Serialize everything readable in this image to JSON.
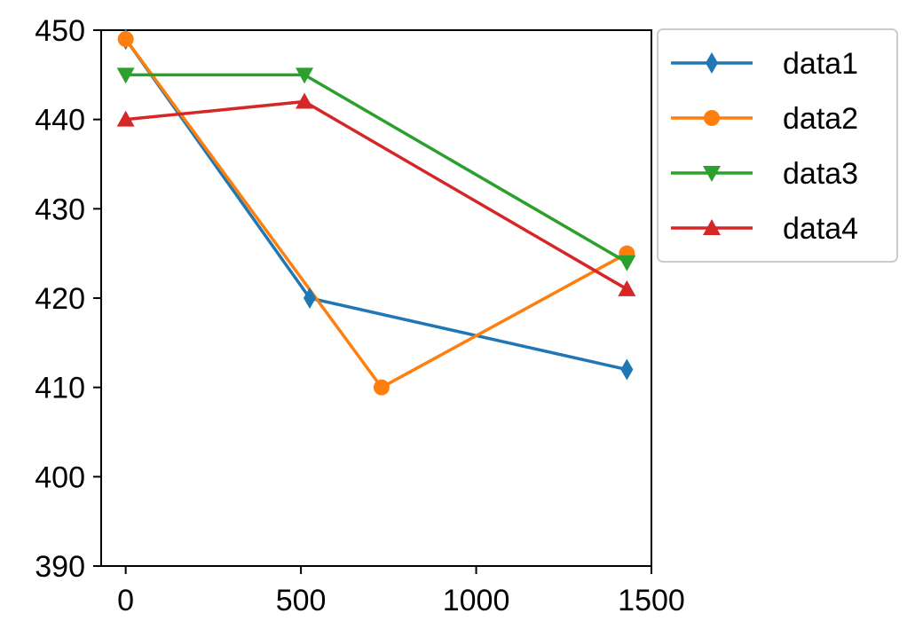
{
  "chart_data": {
    "type": "line",
    "title": "",
    "xlabel": "",
    "ylabel": "",
    "xlim": [
      -70,
      1500
    ],
    "ylim": [
      390,
      450
    ],
    "grid": false,
    "x_ticks": [
      0,
      500,
      1000,
      1500
    ],
    "y_ticks": [
      390,
      400,
      410,
      420,
      430,
      440,
      450
    ],
    "legend_position": "outside-top-right",
    "series": [
      {
        "name": "data1",
        "color": "#1f77b4",
        "marker": "thin-diamond",
        "x": [
          0,
          525,
          1430
        ],
        "y": [
          449,
          420,
          412
        ]
      },
      {
        "name": "data2",
        "color": "#ff7f0e",
        "marker": "circle",
        "x": [
          0,
          730,
          1430
        ],
        "y": [
          449,
          410,
          425
        ]
      },
      {
        "name": "data3",
        "color": "#2ca02c",
        "marker": "triangle-down",
        "x": [
          0,
          510,
          1430
        ],
        "y": [
          445,
          445,
          424
        ]
      },
      {
        "name": "data4",
        "color": "#d62728",
        "marker": "triangle-up",
        "x": [
          0,
          510,
          1430
        ],
        "y": [
          440,
          442,
          421
        ]
      }
    ]
  }
}
